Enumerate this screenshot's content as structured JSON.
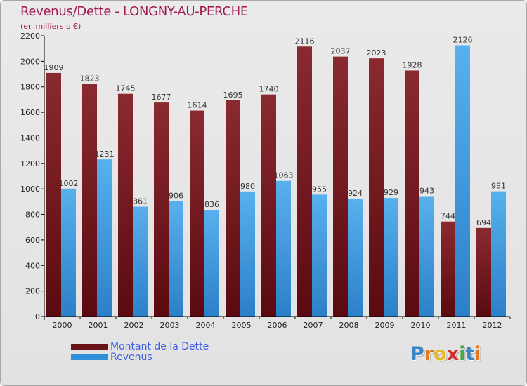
{
  "title": "Revenus/Dette - LONGNY-AU-PERCHE",
  "subtitle": "(en milliers d'€)",
  "colors": {
    "title": "#a01850",
    "dette": "#6b1218",
    "revenus": "#2f8fd8",
    "legend_text": "#4060e0"
  },
  "chart_data": {
    "type": "bar",
    "categories": [
      "2000",
      "2001",
      "2002",
      "2003",
      "2004",
      "2005",
      "2006",
      "2007",
      "2008",
      "2009",
      "2010",
      "2011",
      "2012"
    ],
    "series": [
      {
        "name": "Montant de la Dette",
        "values": [
          1909,
          1823,
          1745,
          1677,
          1614,
          1695,
          1740,
          2116,
          2037,
          2023,
          1928,
          744,
          694
        ]
      },
      {
        "name": "Revenus",
        "values": [
          1002,
          1231,
          861,
          906,
          836,
          980,
          1063,
          955,
          924,
          929,
          943,
          2126,
          981
        ]
      }
    ],
    "yticks": [
      0,
      200,
      400,
      600,
      800,
      1000,
      1200,
      1400,
      1600,
      1800,
      2000,
      2200
    ],
    "ylim": [
      0,
      2200
    ],
    "grid": false,
    "legend": "bottom-left"
  },
  "legend": [
    {
      "label": "Montant de la Dette",
      "color": "#6b1218"
    },
    {
      "label": "Revenus",
      "color": "#2f8fd8"
    }
  ],
  "logo": {
    "text": "Proxiti",
    "letters": [
      {
        "ch": "P",
        "color": "#3a84c8"
      },
      {
        "ch": "r",
        "color": "#e07a20"
      },
      {
        "ch": "o",
        "color": "#e8b820"
      },
      {
        "ch": "x",
        "color": "#d03030"
      },
      {
        "ch": "i",
        "color": "#48a848"
      },
      {
        "ch": "t",
        "color": "#3a84c8"
      },
      {
        "ch": "i",
        "color": "#e07a20"
      }
    ]
  }
}
